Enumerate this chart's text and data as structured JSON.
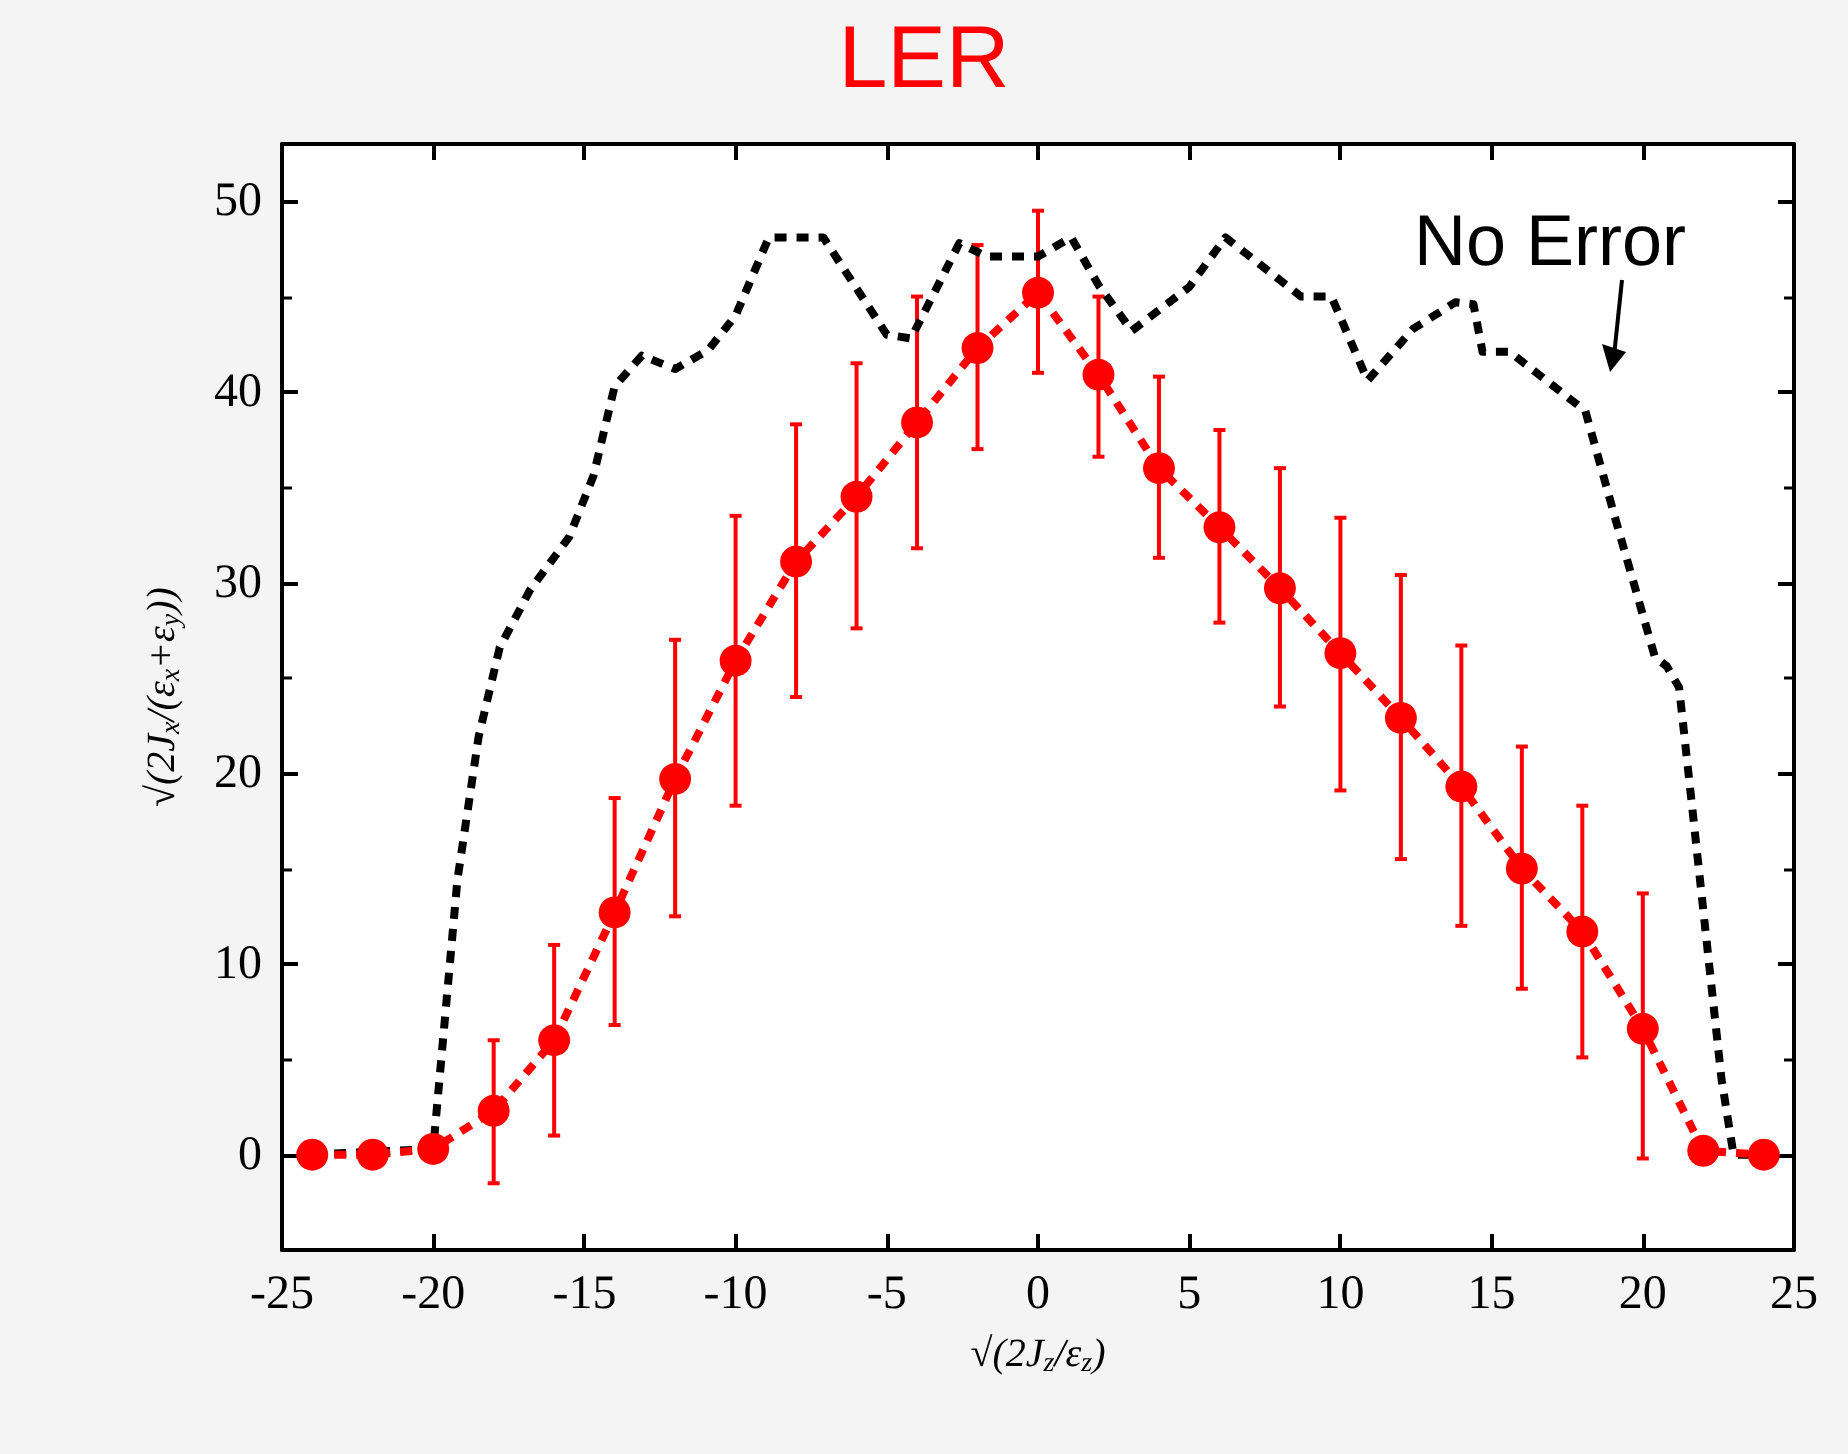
{
  "chart_data": {
    "type": "line",
    "title": "LER",
    "xlabel": "√(2J$_{z}$/ε$_{z}$)",
    "ylabel": "√(2J$_{x}$/(ε$_{x}$+ε$_{y}$))",
    "annotations": [
      "No Error"
    ],
    "xlim": [
      -25,
      25
    ],
    "xticks": [
      -25,
      -20,
      -15,
      -10,
      -5,
      0,
      5,
      10,
      15,
      20,
      25
    ],
    "ylim": [
      -5,
      53
    ],
    "yticks": [
      0,
      10,
      20,
      30,
      40,
      50
    ],
    "grid": false,
    "series": [
      {
        "color": "#000000",
        "marker": "none",
        "line_style": "dashed",
        "x": [
          -24,
          -20,
          -19.2,
          -18.5,
          -17.8,
          -16.8,
          -15.5,
          -14.7,
          -14,
          -13.1,
          -12,
          -10.9,
          -10,
          -8.9,
          -7.1,
          -5,
          -4.2,
          -2.6,
          -1.7,
          0,
          1.1,
          2,
          3.1,
          5,
          6.2,
          8.7,
          9.7,
          10.9,
          12.4,
          13.8,
          14.4,
          14.7,
          15.6,
          18.1,
          19.1,
          20.4,
          20.8,
          21.2,
          21.6,
          22.6,
          23,
          24
        ],
        "values": [
          0,
          0.3,
          14.4,
          21.9,
          26.6,
          29.6,
          32.4,
          35.6,
          40.3,
          41.9,
          41.2,
          42.2,
          44,
          48.1,
          48.1,
          43,
          42.8,
          47.8,
          47.1,
          47.1,
          48.1,
          45.6,
          43.2,
          45.5,
          48.1,
          45,
          45,
          40.6,
          43.3,
          44.7,
          44.6,
          42.1,
          42.1,
          39,
          33.3,
          26.1,
          25.6,
          24.5,
          18.7,
          4,
          0,
          0
        ]
      },
      {
        "color": "#ff0000",
        "marker": "circle",
        "line_style": "dashed",
        "x": [
          -24,
          -22,
          -20,
          -18,
          -16,
          -14,
          -12,
          -10,
          -8,
          -6,
          -4,
          -2,
          0,
          2,
          4,
          6,
          8,
          10,
          12,
          14,
          16,
          18,
          20,
          22,
          24
        ],
        "values": [
          0,
          0,
          0.3,
          2.3,
          6,
          12.7,
          19.7,
          25.9,
          31.1,
          34.5,
          38.4,
          42.3,
          45.2,
          40.9,
          36,
          32.9,
          29.7,
          26.3,
          22.9,
          19.3,
          15,
          11.7,
          6.6,
          0.2,
          0
        ],
        "errors": [
          null,
          null,
          null,
          [
            -1.5,
            6
          ],
          [
            1,
            11
          ],
          [
            6.8,
            18.7
          ],
          [
            12.5,
            27
          ],
          [
            18.3,
            33.5
          ],
          [
            24,
            38.3
          ],
          [
            27.6,
            41.5
          ],
          [
            31.8,
            45
          ],
          [
            37,
            47.7
          ],
          [
            41,
            49.5
          ],
          [
            36.6,
            45
          ],
          [
            31.3,
            40.8
          ],
          [
            27.9,
            38
          ],
          [
            23.5,
            36
          ],
          [
            19.1,
            33.4
          ],
          [
            15.5,
            30.4
          ],
          [
            12,
            26.7
          ],
          [
            8.7,
            21.4
          ],
          [
            5.1,
            18.3
          ],
          [
            -0.2,
            13.7
          ],
          null,
          null
        ]
      }
    ]
  }
}
